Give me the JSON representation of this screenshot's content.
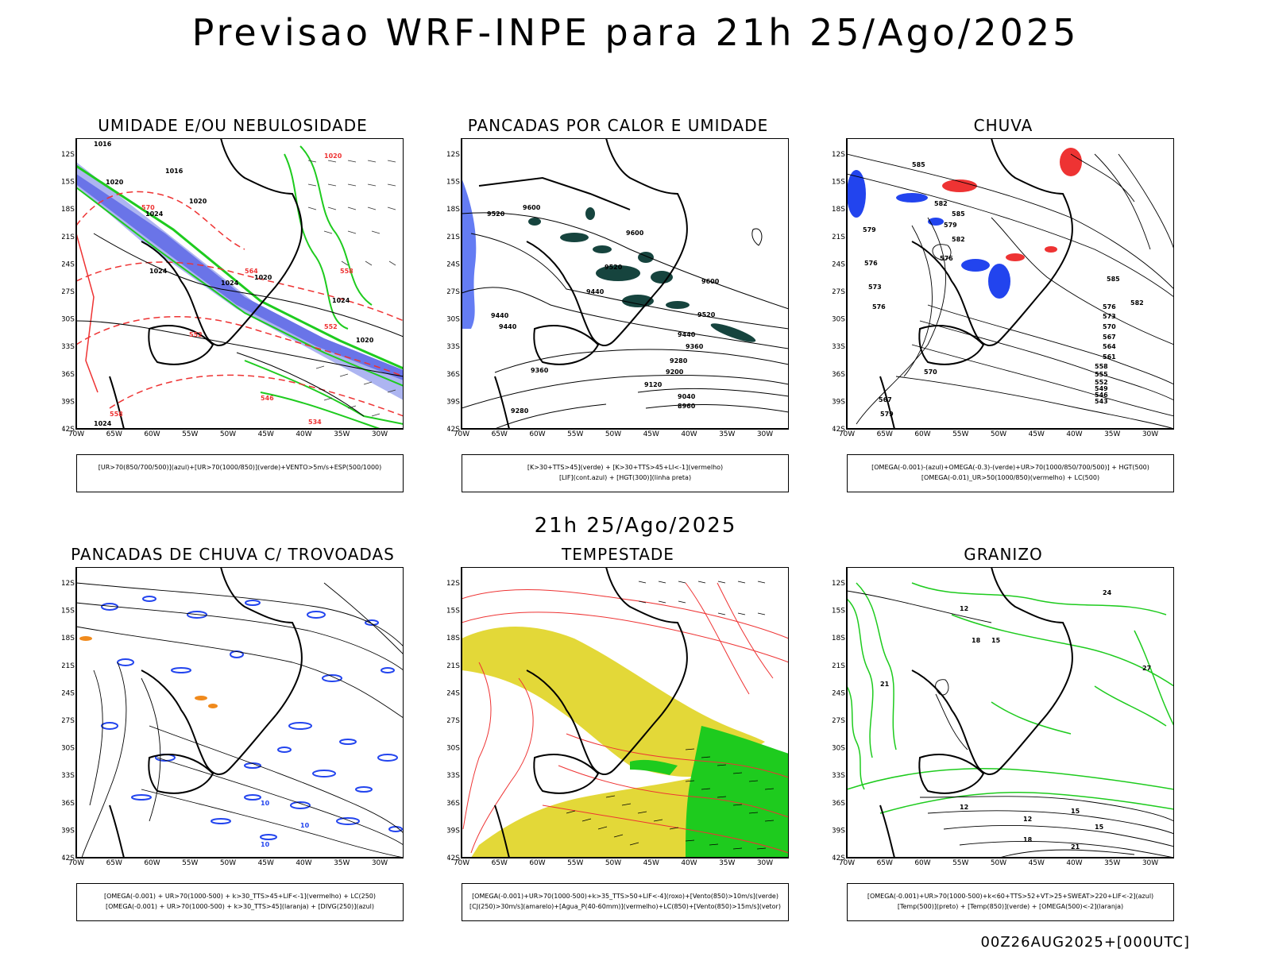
{
  "main_title": "Previsao WRF-INPE  para 21h 25/Ago/2025",
  "subtitle": "21h 25/Ago/2025",
  "footer": "00Z26AUG2025+[000UTC]",
  "axes": {
    "lat_labels": [
      "12S",
      "15S",
      "18S",
      "21S",
      "24S",
      "27S",
      "30S",
      "33S",
      "36S",
      "39S",
      "42S"
    ],
    "lon_labels": [
      "70W",
      "65W",
      "60W",
      "55W",
      "50W",
      "45W",
      "40W",
      "35W",
      "30W"
    ]
  },
  "colors": {
    "blue": "#2244ee",
    "lightblue": "#9fa8ee",
    "green": "#1ecb1e",
    "red": "#ee3333",
    "yellow": "#e3d838",
    "darkteal": "#16443e",
    "orange": "#f08a1c"
  },
  "panels": [
    {
      "title": "UMIDADE E/OU NEBULOSIDADE",
      "legend": [
        "[UR>70(850/700/500)](azul)+[UR>70(1000/850)](verde)+VENTO>5m/s+ESP(500/1000)"
      ],
      "labels": [
        "1016",
        "1016",
        "1020",
        "1020",
        "1024",
        "1020",
        "1024",
        "1024",
        "1024",
        "1020",
        "1024",
        "1020",
        "570",
        "564",
        "558",
        "552",
        "546",
        "534",
        "552",
        "558"
      ]
    },
    {
      "title": "PANCADAS POR CALOR E UMIDADE",
      "legend": [
        "[K>30+TTS>45](verde) + [K>30+TTS>45+LI<-1](vermelho)",
        "[LIF](cont.azul) + [HGT(300)](linha preta)"
      ],
      "labels": [
        "9520",
        "9600",
        "9600",
        "9520",
        "9440",
        "9440",
        "9440",
        "9600",
        "9520",
        "9440",
        "9360",
        "9360",
        "9280",
        "9200",
        "9120",
        "9040",
        "8960",
        "9280"
      ]
    },
    {
      "title": "CHUVA",
      "legend": [
        "[OMEGA(-0.001)-(azul)+OMEGA(-0.3)-(verde)+UR>70(1000/850/700/500)] + HGT(500)",
        "[OMEGA(-0.01)_UR>50(1000/850)(vermelho) + LC(500)"
      ],
      "labels": [
        "585",
        "582",
        "585",
        "582",
        "579",
        "576",
        "576",
        "573",
        "570",
        "567",
        "564",
        "561",
        "558",
        "555",
        "552",
        "549",
        "546",
        "543",
        "585",
        "582",
        "579",
        "576",
        "573",
        "570",
        "567",
        "579",
        "576",
        "582"
      ]
    },
    {
      "title": "PANCADAS DE CHUVA C/ TROVOADAS",
      "legend": [
        "[OMEGA(-0.001) + UR>70(1000-500) + k>30_TTS>45+LIF<-1](vermelho) + LC(250)",
        "[OMEGA(-0.001) + UR>70(1000-500) + k>30_TTS>45](laranja) + [DIVG(250)](azul)"
      ],
      "labels": [
        "10",
        "10",
        "10"
      ]
    },
    {
      "title": "TEMPESTADE",
      "legend": [
        "[OMEGA(-0.001)+UR>70(1000-500)+k>35_TTS>50+LIF<-4](roxo)+[Vento(850)>10m/s](verde)",
        "[CJ(250)>30m/s](amarelo)+[Agua_P(40-60mm)](vermelho)+LC(850)+[Vento(850)>15m/s](vetor)"
      ],
      "labels": []
    },
    {
      "title": "GRANIZO",
      "legend": [
        "[OMEGA(-0.001)+UR>70(1000-500)+k<60+TTS>52+VT>25+SWEAT>220+LIF<-2](azul)",
        "[Temp(500)](preto) + [Temp(850)](verde) + [OMEGA(500)<-2](laranja)"
      ],
      "labels": [
        "12",
        "15",
        "18",
        "21",
        "24",
        "27",
        "12",
        "15",
        "12",
        "15",
        "18",
        "21"
      ]
    }
  ]
}
